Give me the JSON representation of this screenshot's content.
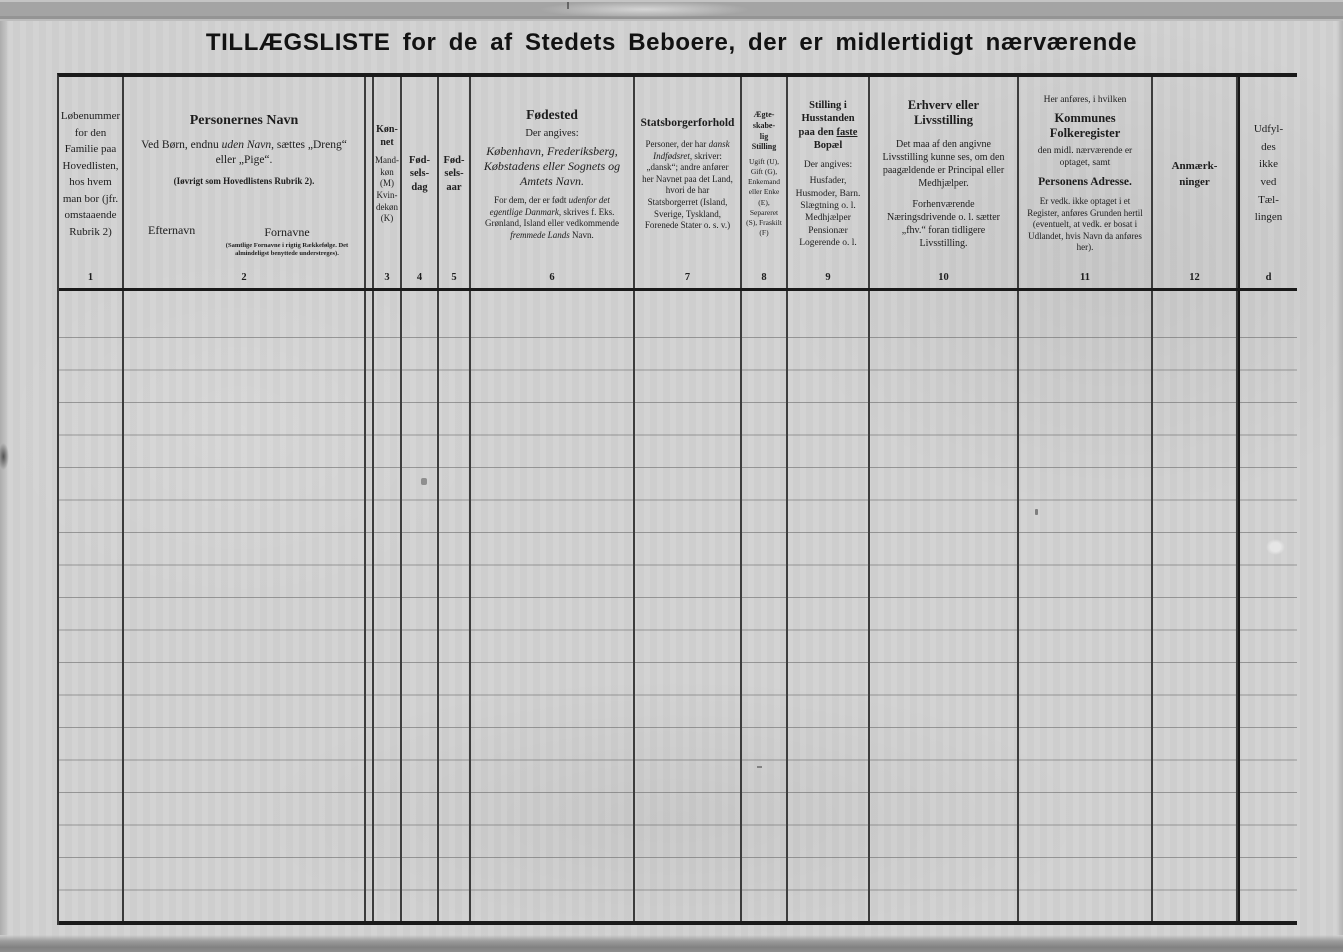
{
  "page": {
    "title": "TILLÆGSLISTE for de af Stedets Beboere, der er midlertidigt nærværende"
  },
  "columns": {
    "c1": {
      "num": "1",
      "text": "Løbenummer for den Familie paa Hovedlisten, hos hvem man bor (jfr. omstaaende Rubrik 2)"
    },
    "c2": {
      "num": "2",
      "title": "Personernes Navn",
      "rule_pre": "Ved Børn, endnu ",
      "rule_it": "uden Navn",
      "rule_post": ", sættes „Dreng“ eller „Pige“.",
      "note": "(Iøvrigt som Hovedlistens Rubrik 2).",
      "efternavn": "Efternavn",
      "fornavne": "Fornavne",
      "fornavne_note": "(Samtlige Fornavne i rigtig Rækkefølge. Det almindeligst benyttede understreges)."
    },
    "c3": {
      "num": "3",
      "title_lines": [
        "Køn-",
        "net"
      ],
      "sub_lines": [
        "Mand-",
        "køn",
        "(M)",
        "Kvin-",
        "dekøn",
        "(K)"
      ]
    },
    "c4": {
      "num": "4",
      "lines": [
        "Fød-",
        "sels-",
        "dag"
      ]
    },
    "c5": {
      "num": "5",
      "lines": [
        "Fød-",
        "sels-",
        "aar"
      ]
    },
    "c6": {
      "num": "6",
      "title": "Fødested",
      "sub": "Der angives:",
      "main_it": "København, Frederiksberg, Købstadens eller Sognets og Amtets Navn.",
      "p_pre": "For dem, der er født ",
      "p_it1": "udenfor det egentlige Danmark,",
      "p_mid": " skrives f. Eks. Grønland, Island eller vedkommende ",
      "p_it2": "fremmede Lands",
      "p_post": " Navn."
    },
    "c7": {
      "num": "7",
      "title": "Statsborgerforhold",
      "p_pre": "Personer, der har ",
      "p_it": "dansk Indfødsret,",
      "p_post": " skriver: „dansk“; andre anfører her Navnet paa det Land, hvori de har Statsborgerret (Island, Sverige, Tyskland, Forenede Stater o. s. v.)"
    },
    "c8": {
      "num": "8",
      "title_lines": [
        "Ægte-",
        "skabe-",
        "lig",
        "Stilling"
      ],
      "sub": "Ugift (U), Gift (G), Enkemand eller Enke (E), Separeret (S), Fraskilt (F)"
    },
    "c9": {
      "num": "9",
      "t_pre": "Stilling i Husstanden paa den ",
      "t_u": "faste",
      "t_post": " Bopæl",
      "sub": "Der angives:",
      "lines": [
        "Husfader, Husmoder, Barn.",
        "Slægtning o. l.",
        "Medhjælper",
        "Pensionær",
        "Logerende o. l."
      ]
    },
    "c10": {
      "num": "10",
      "title": "Erhverv eller Livsstilling",
      "p1": "Det maa af den angivne Livsstilling kunne ses, om den paagældende er Principal eller Medhjælper.",
      "p2": "Forhenværende Næringsdrivende o. l. sætter „fhv.“ foran tidligere Livsstilling."
    },
    "c11": {
      "num": "11",
      "pre": "Her anføres, i hvilken",
      "title1": "Kommunes Folkeregister",
      "mid": "den midl. nærværende er optaget, samt",
      "title2": "Personens Adresse.",
      "p": "Er vedk. ikke optaget i et Register, anføres Grunden hertil (eventuelt, at vedk. er bosat i Udlandet, hvis Navn da anføres her)."
    },
    "c12": {
      "num": "12",
      "title_lines": [
        "Anmærk-",
        "ninger"
      ]
    },
    "cd": {
      "num": "d",
      "lines": [
        "Udfyl-",
        "des",
        "ikke",
        "ved",
        "Tæl-",
        "lingen"
      ]
    }
  },
  "colors": {
    "paper": "#d2d2d2",
    "ink": "#1d1d1d",
    "rule_dark": "#1a1a1a",
    "rule_faint": "#9a9a9a"
  }
}
